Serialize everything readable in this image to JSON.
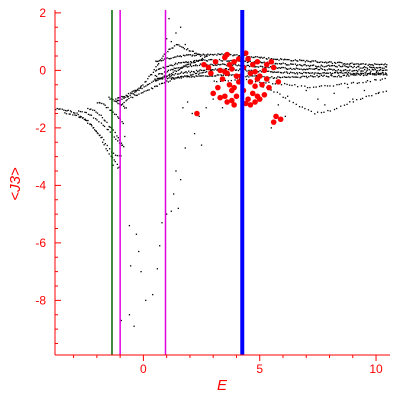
{
  "chart_data": {
    "type": "scatter",
    "xlabel": "E",
    "ylabel": "<J3>",
    "xlim": [
      -3.8,
      10.6
    ],
    "ylim": [
      -9.9,
      2.1
    ],
    "x_ticks": [
      0,
      5,
      10
    ],
    "y_ticks": [
      2,
      0,
      -2,
      -4,
      -6,
      -8
    ],
    "axis_color": "#ff0000",
    "grid": false,
    "legend": "none",
    "vertical_lines": [
      {
        "x": -1.35,
        "color": "#006400",
        "width": 1.5
      },
      {
        "x": -1.0,
        "color": "#e000e0",
        "width": 1.5
      },
      {
        "x": 0.95,
        "color": "#e000e0",
        "width": 1.5
      },
      {
        "x": 4.25,
        "color": "#0000ff",
        "width": 4
      }
    ],
    "series": [
      {
        "color": "#000000",
        "marker_size": 1.3,
        "bands": [
          {
            "x0": -3.8,
            "x1": -1.0,
            "y": [
              -1.35,
              -1.38,
              -1.5,
              -1.75,
              -2.2,
              -2.9,
              -3.4
            ],
            "n": 40
          },
          {
            "x0": -3.4,
            "x1": -0.9,
            "y": [
              -1.5,
              -1.55,
              -1.7,
              -2.0,
              -2.4,
              -2.9,
              -3.0
            ],
            "n": 30
          },
          {
            "x0": -2.8,
            "x1": -0.8,
            "y": [
              -1.4,
              -1.5,
              -1.7,
              -2.0,
              -2.4,
              -2.7
            ],
            "n": 25
          },
          {
            "x0": -2.4,
            "x1": -0.9,
            "y": [
              -1.3,
              -1.4,
              -1.6,
              -1.9,
              -2.2,
              -2.6
            ],
            "n": 22
          },
          {
            "x0": -2.0,
            "x1": -0.8,
            "y": [
              -1.1,
              -1.2,
              -1.4,
              -1.6,
              -1.9
            ],
            "n": 18
          },
          {
            "x0": -1.5,
            "x1": -0.7,
            "y": [
              -0.95,
              -1.05,
              -1.2,
              -1.35
            ],
            "n": 14
          },
          {
            "x0": -1.2,
            "x1": 2.5,
            "y": [
              -1.0,
              -0.85,
              -0.6,
              -0.1,
              0.6,
              0.9,
              0.7,
              0.5
            ],
            "n": 60
          },
          {
            "x0": -1.2,
            "x1": 2.8,
            "y": [
              -1.1,
              -0.9,
              -0.6,
              -0.35,
              -0.15,
              0.1,
              0.3,
              0.5
            ],
            "n": 60
          },
          {
            "x0": -1.0,
            "x1": 3.0,
            "y": [
              -1.2,
              -0.9,
              -0.7,
              -0.5,
              -0.3,
              -0.2,
              -0.1,
              0.0
            ],
            "n": 55
          },
          {
            "x0": 0.5,
            "x1": 10.5,
            "y": [
              0.3,
              0.5,
              0.55,
              0.55,
              0.5,
              0.4,
              0.35,
              0.3,
              0.25,
              0.2,
              0.2
            ],
            "n": 160
          },
          {
            "x0": 0.5,
            "x1": 10.5,
            "y": [
              0.0,
              0.25,
              0.35,
              0.35,
              0.3,
              0.25,
              0.2,
              0.15,
              0.15,
              0.1,
              0.1
            ],
            "n": 160
          },
          {
            "x0": 0.5,
            "x1": 10.5,
            "y": [
              -0.2,
              0.1,
              0.2,
              0.2,
              0.15,
              0.1,
              0.05,
              0.05,
              0.0,
              0.0,
              0.0
            ],
            "n": 160
          },
          {
            "x0": 0.5,
            "x1": 10.5,
            "y": [
              -0.35,
              -0.1,
              0.0,
              0.05,
              0.0,
              -0.05,
              -0.1,
              -0.1,
              -0.1,
              -0.1,
              -0.1
            ],
            "n": 160
          },
          {
            "x0": 0.5,
            "x1": 10.5,
            "y": [
              -0.3,
              -0.25,
              -0.2,
              -0.15,
              -0.2,
              -0.25,
              -0.25,
              -0.2,
              -0.2,
              -0.15,
              -0.15
            ],
            "n": 150
          },
          {
            "x0": 3.0,
            "x1": 10.5,
            "y": [
              -0.4,
              -0.3,
              -0.4,
              -0.5,
              -0.6,
              -0.5,
              -0.4,
              -0.3
            ],
            "n": 60
          },
          {
            "x0": 5.0,
            "x1": 10.5,
            "y": [
              -0.5,
              -0.8,
              -1.2,
              -1.5,
              -1.4,
              -1.1,
              -0.9,
              -0.7
            ],
            "n": 40
          }
        ],
        "points": [
          [
            -1.3,
            -3.3
          ],
          [
            -1.1,
            -3.4
          ],
          [
            -0.9,
            -2.6
          ],
          [
            -0.8,
            -2.3
          ],
          [
            -0.6,
            -5.4
          ],
          [
            -0.3,
            -5.7
          ],
          [
            -0.2,
            -6.3
          ],
          [
            -0.55,
            -6.8
          ],
          [
            -0.1,
            -7.0
          ],
          [
            0.1,
            -8.0
          ],
          [
            -0.6,
            -8.5
          ],
          [
            -0.4,
            -8.9
          ],
          [
            -0.95,
            -8.7
          ],
          [
            0.4,
            -7.8
          ],
          [
            0.6,
            -6.9
          ],
          [
            0.7,
            -6.1
          ],
          [
            0.8,
            -5.3
          ],
          [
            1.0,
            -5.0
          ],
          [
            1.2,
            -4.9
          ],
          [
            1.3,
            -4.3
          ],
          [
            1.4,
            -3.5
          ],
          [
            1.6,
            -3.8
          ],
          [
            1.5,
            -4.8
          ],
          [
            1.8,
            -2.7
          ],
          [
            2.5,
            -2.6
          ],
          [
            2.2,
            -2.2
          ],
          [
            2.4,
            -1.6
          ],
          [
            2.1,
            -1.5
          ],
          [
            1.7,
            -1.3
          ],
          [
            1.9,
            -1.1
          ],
          [
            2.7,
            -1.3
          ],
          [
            3.0,
            -1.0
          ],
          [
            3.4,
            -1.3
          ],
          [
            5.8,
            -1.2
          ],
          [
            6.2,
            -0.9
          ],
          [
            7.0,
            -0.7
          ],
          [
            7.5,
            -1.0
          ],
          [
            8.2,
            -0.8
          ],
          [
            8.8,
            -0.6
          ],
          [
            9.5,
            -0.7
          ],
          [
            10.1,
            -0.8
          ],
          [
            5.5,
            -2.0
          ],
          [
            6.1,
            -1.6
          ],
          [
            7.8,
            -1.2
          ],
          [
            9.0,
            -1.0
          ],
          [
            1.2,
            1.0
          ],
          [
            1.4,
            1.3
          ],
          [
            1.6,
            1.5
          ],
          [
            1.0,
            1.1
          ],
          [
            1.8,
            0.9
          ],
          [
            1.1,
            1.8
          ]
        ]
      },
      {
        "color": "#ff0000",
        "marker_size": 2.8,
        "points": [
          [
            3.5,
            0.45
          ],
          [
            3.7,
            0.2
          ],
          [
            3.9,
            0.3
          ],
          [
            3.6,
            -0.1
          ],
          [
            3.8,
            0.05
          ],
          [
            4.0,
            -0.2
          ],
          [
            3.4,
            -0.3
          ],
          [
            3.7,
            -0.5
          ],
          [
            3.9,
            -0.6
          ],
          [
            4.1,
            -0.4
          ],
          [
            3.2,
            -0.6
          ],
          [
            3.5,
            -0.9
          ],
          [
            3.3,
            -0.95
          ],
          [
            3.6,
            -1.1
          ],
          [
            3.9,
            -1.2
          ],
          [
            4.0,
            -0.9
          ],
          [
            3.8,
            -0.7
          ],
          [
            3.0,
            -0.8
          ],
          [
            2.8,
            0.1
          ],
          [
            2.6,
            0.2
          ],
          [
            2.9,
            -0.1
          ],
          [
            3.1,
            0.3
          ],
          [
            4.3,
            0.1
          ],
          [
            4.5,
            0.4
          ],
          [
            4.7,
            0.2
          ],
          [
            4.9,
            0.3
          ],
          [
            4.6,
            -0.1
          ],
          [
            4.8,
            -0.05
          ],
          [
            4.9,
            -0.3
          ],
          [
            4.6,
            -0.4
          ],
          [
            4.8,
            -0.55
          ],
          [
            5.0,
            -0.2
          ],
          [
            5.2,
            0.0
          ],
          [
            5.3,
            0.2
          ],
          [
            5.1,
            -0.5
          ],
          [
            5.4,
            -0.6
          ],
          [
            4.7,
            -0.8
          ],
          [
            4.9,
            -0.9
          ],
          [
            5.2,
            -0.85
          ],
          [
            4.5,
            -1.0
          ],
          [
            4.6,
            -1.2
          ],
          [
            4.8,
            -1.1
          ],
          [
            4.4,
            0.6
          ],
          [
            5.5,
            0.3
          ],
          [
            5.6,
            0.1
          ],
          [
            4.3,
            -0.7
          ],
          [
            5.0,
            -1.0
          ],
          [
            3.3,
            0.0
          ],
          [
            5.7,
            -1.6
          ],
          [
            5.6,
            -1.8
          ],
          [
            5.9,
            -1.7
          ],
          [
            3.5,
            -0.05
          ],
          [
            4.1,
            0.4
          ],
          [
            2.3,
            -1.5
          ],
          [
            3.6,
            0.55
          ],
          [
            4.2,
            -0.2
          ],
          [
            5.3,
            -0.3
          ],
          [
            4.4,
            -1.15
          ],
          [
            3.8,
            -1.05
          ],
          [
            5.8,
            -0.4
          ]
        ]
      }
    ]
  }
}
